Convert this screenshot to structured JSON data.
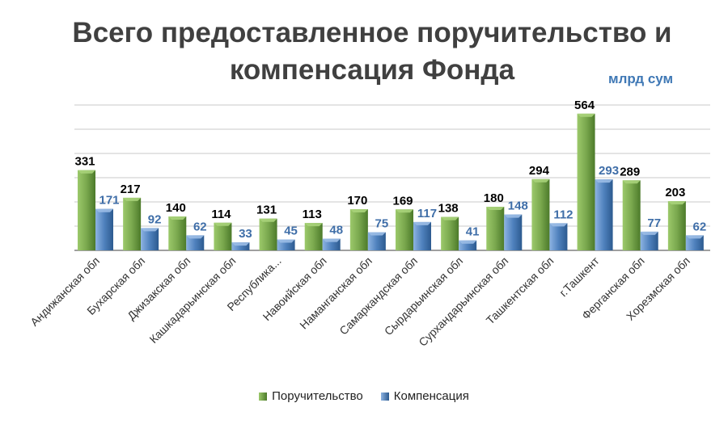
{
  "title": "Всего предоставленное поручительство и компенсация Фонда",
  "unit": "млрд сум",
  "colors": {
    "guarantee": "#7aa84e",
    "compensation": "#4f81bd",
    "guarantee_label": "#000000",
    "compensation_label": "#3f6ea8"
  },
  "chart_data": {
    "type": "bar",
    "categories": [
      "Андижанская обл",
      "Бухарская обл",
      "Джизакская обл",
      "Кашкадарьинская обл",
      "Республика...",
      "Навоийская обл",
      "Наманганская обл",
      "Самаркандская обл",
      "Сырдарьинская обл",
      "Сурхандарьинская обл",
      "Ташкентская обл",
      "г.Ташкент",
      "Ферганская обл",
      "Хорезмская обл"
    ],
    "series": [
      {
        "name": "Поручительство",
        "values": [
          331,
          217,
          140,
          114,
          131,
          113,
          170,
          169,
          138,
          180,
          294,
          564,
          289,
          203
        ]
      },
      {
        "name": "Компенсация",
        "values": [
          171,
          92,
          62,
          33,
          45,
          48,
          75,
          117,
          41,
          148,
          112,
          293,
          77,
          62
        ]
      }
    ],
    "ylim": [
      0,
      600
    ],
    "grid": true,
    "legend": "bottom"
  }
}
